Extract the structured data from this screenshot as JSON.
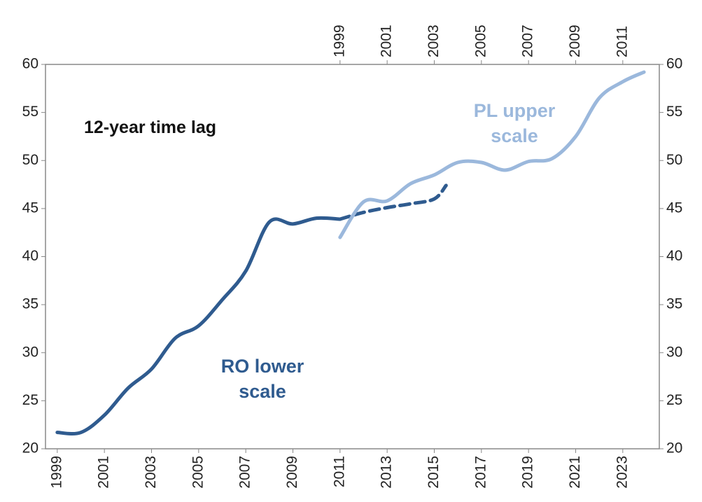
{
  "chart_data": {
    "type": "line",
    "annotations": [
      "12-year time lag",
      "RO lower scale",
      "PL upper scale"
    ],
    "xlim": [
      1998.5,
      2024.55
    ],
    "xticks": [
      1999,
      2001,
      2003,
      2005,
      2007,
      2009,
      2011,
      2013,
      2015,
      2017,
      2019,
      2021,
      2023
    ],
    "x2lim": [
      1986.5,
      2012.55
    ],
    "x2ticks": [
      1999,
      2001,
      2003,
      2005,
      2007,
      2009,
      2011
    ],
    "ylim": [
      20,
      60
    ],
    "yticks": [
      20,
      25,
      30,
      35,
      40,
      45,
      50,
      55,
      60
    ],
    "y2lim": [
      20,
      60
    ],
    "y2ticks": [
      20,
      25,
      30,
      35,
      40,
      45,
      50,
      55,
      60
    ],
    "series": [
      {
        "color": "#2f5b8f",
        "dash": false,
        "xaxis": "x",
        "x": [
          1999,
          2000,
          2001,
          2002,
          2003,
          2004,
          2005,
          2006,
          2007,
          2008,
          2009,
          2010,
          2011
        ],
        "values": [
          21.7,
          21.7,
          23.5,
          26.3,
          28.3,
          31.5,
          32.8,
          35.5,
          38.5,
          43.6,
          43.4,
          44.0,
          43.9
        ]
      },
      {
        "color": "#2f5b8f",
        "dash": true,
        "xaxis": "x",
        "x": [
          2011,
          2012,
          2013,
          2014,
          2015,
          2015.5
        ],
        "values": [
          43.9,
          44.6,
          45.1,
          45.5,
          46.0,
          47.4
        ]
      },
      {
        "color": "#9bb8dc",
        "dash": false,
        "xaxis": "x2",
        "x": [
          1999,
          2000,
          2001,
          2002,
          2003,
          2004,
          2005,
          2006,
          2007,
          2008,
          2009,
          2010,
          2011,
          2011.9
        ],
        "values": [
          42.0,
          45.7,
          45.8,
          47.6,
          48.5,
          49.8,
          49.8,
          49.0,
          49.9,
          50.2,
          52.5,
          56.5,
          58.2,
          59.2
        ]
      }
    ]
  }
}
